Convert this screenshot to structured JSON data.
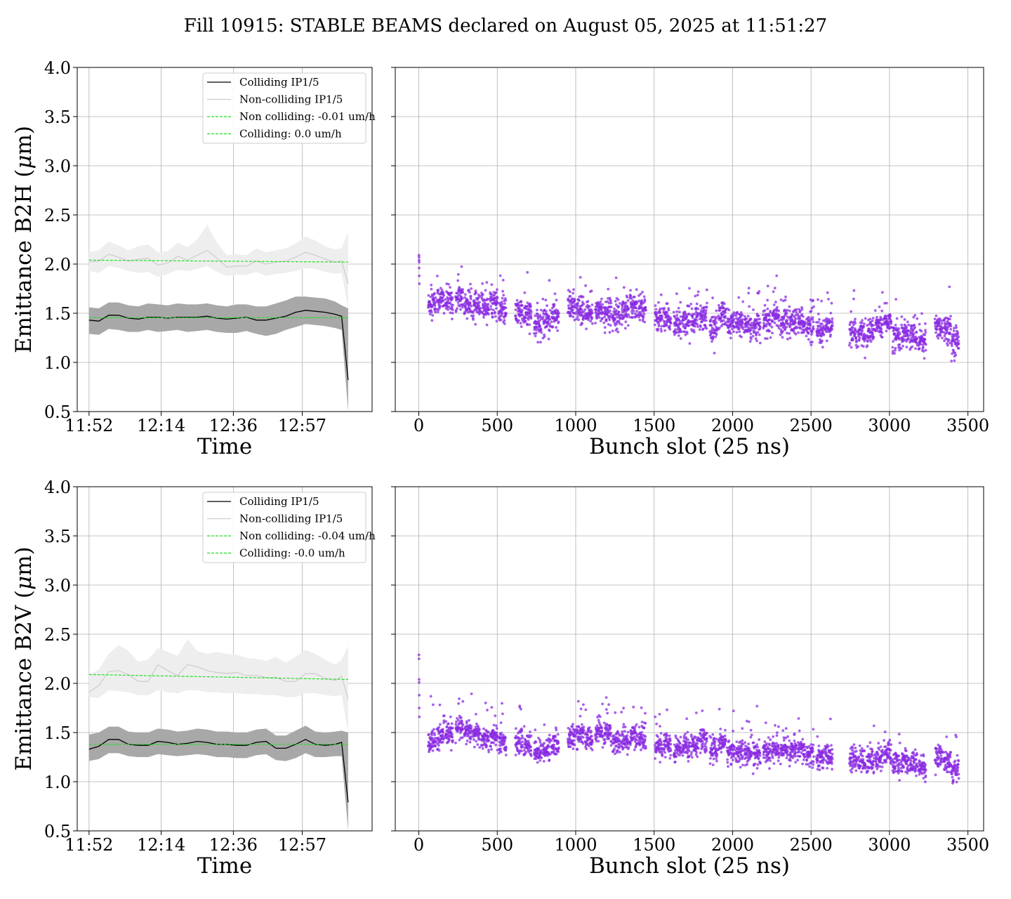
{
  "suptitle": "Fill 10915: STABLE BEAMS declared on August 05, 2025 at 11:51:27",
  "colors": {
    "colliding": "#000000",
    "colliding_band": "#a8a8a8",
    "noncolliding": "#cccccc",
    "noncolliding_band": "#eeeeee",
    "fit": "#22dd22",
    "scatter": "#8a2be2",
    "grid": "#b0b0b0"
  },
  "chart_data": [
    {
      "type": "line",
      "row": 0,
      "col": 0,
      "xlabel": "Time",
      "ylabel": "Emittance B2H ($\\mu$m)",
      "ylabel_text": "Emittance B2H (",
      "ylabel_mu": "μ",
      "ylabel_unit": "m)",
      "x_ticks": [
        "11:52",
        "12:14",
        "12:36",
        "12:57"
      ],
      "y_ticks": [
        "0.5",
        "1.0",
        "1.5",
        "2.0",
        "2.5",
        "3.0",
        "3.5",
        "4.0"
      ],
      "ylim": [
        0.5,
        4.0
      ],
      "grid": true,
      "legend_position": "upper-right",
      "legend": [
        "Colliding IP1/5",
        "Non-colliding IP1/5",
        "Non colliding: -0.01 um/h",
        "Colliding: 0.0 um/h"
      ],
      "time_minutes": [
        0,
        3,
        6,
        9,
        12,
        15,
        18,
        21,
        24,
        27,
        30,
        33,
        36,
        39,
        42,
        45,
        48,
        51,
        54,
        57,
        60,
        63,
        66,
        69,
        72,
        75,
        77,
        79
      ],
      "series": [
        {
          "name": "Colliding IP1/5",
          "kind": "line",
          "values": [
            1.43,
            1.42,
            1.48,
            1.48,
            1.45,
            1.44,
            1.46,
            1.46,
            1.45,
            1.46,
            1.46,
            1.46,
            1.47,
            1.45,
            1.44,
            1.45,
            1.46,
            1.43,
            1.43,
            1.45,
            1.47,
            1.51,
            1.53,
            1.52,
            1.51,
            1.49,
            1.47,
            0.82
          ],
          "band_lo": [
            1.29,
            1.28,
            1.34,
            1.33,
            1.31,
            1.31,
            1.33,
            1.31,
            1.32,
            1.33,
            1.31,
            1.32,
            1.33,
            1.31,
            1.3,
            1.3,
            1.32,
            1.29,
            1.27,
            1.29,
            1.33,
            1.36,
            1.39,
            1.38,
            1.37,
            1.35,
            1.33,
            0.5
          ],
          "band_hi": [
            1.56,
            1.55,
            1.61,
            1.61,
            1.58,
            1.57,
            1.6,
            1.59,
            1.58,
            1.6,
            1.59,
            1.59,
            1.6,
            1.58,
            1.57,
            1.59,
            1.59,
            1.57,
            1.57,
            1.6,
            1.63,
            1.67,
            1.67,
            1.66,
            1.65,
            1.62,
            1.58,
            1.55
          ]
        },
        {
          "name": "Non-colliding IP1/5",
          "kind": "line",
          "values": [
            2.02,
            2.03,
            2.1,
            2.07,
            2.03,
            2.05,
            2.06,
            1.99,
            2.01,
            2.08,
            2.04,
            2.09,
            2.14,
            2.06,
            1.97,
            1.98,
            1.98,
            2.03,
            2.0,
            2.02,
            2.03,
            2.07,
            2.12,
            2.09,
            2.05,
            2.02,
            2.03,
            1.8
          ],
          "band_lo": [
            1.93,
            1.91,
            1.98,
            1.96,
            1.93,
            1.91,
            1.92,
            1.87,
            1.9,
            1.94,
            1.93,
            1.95,
            1.98,
            1.92,
            1.88,
            1.89,
            1.89,
            1.92,
            1.88,
            1.9,
            1.91,
            1.93,
            1.96,
            1.95,
            1.92,
            1.9,
            1.91,
            1.55
          ],
          "band_hi": [
            2.12,
            2.14,
            2.23,
            2.19,
            2.14,
            2.18,
            2.2,
            2.12,
            2.13,
            2.22,
            2.17,
            2.25,
            2.4,
            2.22,
            2.09,
            2.1,
            2.09,
            2.16,
            2.12,
            2.14,
            2.16,
            2.21,
            2.28,
            2.24,
            2.18,
            2.15,
            2.16,
            2.33
          ]
        },
        {
          "name": "Non colliding: -0.01 um/h",
          "kind": "fit",
          "x": [
            0,
            79
          ],
          "values": [
            2.04,
            2.02
          ]
        },
        {
          "name": "Colliding: 0.0 um/h",
          "kind": "fit",
          "x": [
            0,
            79
          ],
          "values": [
            1.455,
            1.455
          ]
        }
      ]
    },
    {
      "type": "scatter",
      "row": 0,
      "col": 1,
      "xlabel": "Bunch slot (25 ns)",
      "x_ticks": [
        "0",
        "500",
        "1000",
        "1500",
        "2000",
        "2500",
        "3000",
        "3500"
      ],
      "xlim": [
        -150,
        3600
      ],
      "ylim": [
        0.5,
        4.0
      ],
      "grid": true,
      "first_bunch": [
        2.09,
        2.07,
        2.04,
        2.02,
        1.96,
        1.88,
        1.8
      ],
      "trains": [
        {
          "start": 60,
          "mean": 1.58
        },
        {
          "start": 115,
          "mean": 1.62
        },
        {
          "start": 170,
          "mean": 1.6
        },
        {
          "start": 235,
          "mean": 1.63
        },
        {
          "start": 290,
          "mean": 1.57
        },
        {
          "start": 345,
          "mean": 1.54
        },
        {
          "start": 400,
          "mean": 1.56
        },
        {
          "start": 455,
          "mean": 1.59
        },
        {
          "start": 510,
          "mean": 1.5
        },
        {
          "start": 615,
          "mean": 1.49
        },
        {
          "start": 670,
          "mean": 1.47
        },
        {
          "start": 735,
          "mean": 1.36
        },
        {
          "start": 790,
          "mean": 1.42
        },
        {
          "start": 845,
          "mean": 1.45
        },
        {
          "start": 950,
          "mean": 1.54
        },
        {
          "start": 1005,
          "mean": 1.5
        },
        {
          "start": 1060,
          "mean": 1.46
        },
        {
          "start": 1125,
          "mean": 1.52
        },
        {
          "start": 1180,
          "mean": 1.49
        },
        {
          "start": 1235,
          "mean": 1.47
        },
        {
          "start": 1290,
          "mean": 1.51
        },
        {
          "start": 1345,
          "mean": 1.56
        },
        {
          "start": 1400,
          "mean": 1.55
        },
        {
          "start": 1505,
          "mean": 1.43
        },
        {
          "start": 1560,
          "mean": 1.41
        },
        {
          "start": 1625,
          "mean": 1.37
        },
        {
          "start": 1680,
          "mean": 1.4
        },
        {
          "start": 1735,
          "mean": 1.42
        },
        {
          "start": 1790,
          "mean": 1.45
        },
        {
          "start": 1855,
          "mean": 1.33
        },
        {
          "start": 1910,
          "mean": 1.46
        },
        {
          "start": 1965,
          "mean": 1.37
        },
        {
          "start": 2020,
          "mean": 1.38
        },
        {
          "start": 2075,
          "mean": 1.36
        },
        {
          "start": 2130,
          "mean": 1.36
        },
        {
          "start": 2195,
          "mean": 1.4
        },
        {
          "start": 2250,
          "mean": 1.45
        },
        {
          "start": 2305,
          "mean": 1.39
        },
        {
          "start": 2360,
          "mean": 1.38
        },
        {
          "start": 2415,
          "mean": 1.4
        },
        {
          "start": 2470,
          "mean": 1.33
        },
        {
          "start": 2535,
          "mean": 1.27
        },
        {
          "start": 2590,
          "mean": 1.34
        },
        {
          "start": 2745,
          "mean": 1.28
        },
        {
          "start": 2800,
          "mean": 1.27
        },
        {
          "start": 2855,
          "mean": 1.3
        },
        {
          "start": 2910,
          "mean": 1.36
        },
        {
          "start": 2965,
          "mean": 1.4
        },
        {
          "start": 3020,
          "mean": 1.25
        },
        {
          "start": 3075,
          "mean": 1.26
        },
        {
          "start": 3130,
          "mean": 1.25
        },
        {
          "start": 3185,
          "mean": 1.21
        },
        {
          "start": 3290,
          "mean": 1.35
        },
        {
          "start": 3345,
          "mean": 1.33
        },
        {
          "start": 3395,
          "mean": 1.2
        }
      ],
      "train_length": 48,
      "spread": 0.07
    },
    {
      "type": "line",
      "row": 1,
      "col": 0,
      "xlabel": "Time",
      "ylabel": "Emittance B2V ($\\mu$m)",
      "ylabel_text": "Emittance B2V (",
      "ylabel_mu": "μ",
      "ylabel_unit": "m)",
      "x_ticks": [
        "11:52",
        "12:14",
        "12:36",
        "12:57"
      ],
      "y_ticks": [
        "0.5",
        "1.0",
        "1.5",
        "2.0",
        "2.5",
        "3.0",
        "3.5",
        "4.0"
      ],
      "ylim": [
        0.5,
        4.0
      ],
      "grid": true,
      "legend_position": "upper-right",
      "legend": [
        "Colliding IP1/5",
        "Non-colliding IP1/5",
        "Non colliding: -0.04 um/h",
        "Colliding: -0.0 um/h"
      ],
      "time_minutes": [
        0,
        3,
        6,
        9,
        12,
        15,
        18,
        21,
        24,
        27,
        30,
        33,
        36,
        39,
        42,
        45,
        48,
        51,
        54,
        57,
        60,
        63,
        66,
        69,
        72,
        75,
        77,
        79
      ],
      "series": [
        {
          "name": "Colliding IP1/5",
          "kind": "line",
          "values": [
            1.33,
            1.36,
            1.43,
            1.43,
            1.38,
            1.37,
            1.37,
            1.41,
            1.4,
            1.38,
            1.39,
            1.41,
            1.4,
            1.38,
            1.38,
            1.37,
            1.37,
            1.4,
            1.41,
            1.34,
            1.34,
            1.38,
            1.43,
            1.38,
            1.37,
            1.38,
            1.4,
            0.79
          ],
          "band_lo": [
            1.21,
            1.23,
            1.29,
            1.29,
            1.26,
            1.25,
            1.25,
            1.28,
            1.27,
            1.26,
            1.27,
            1.28,
            1.27,
            1.25,
            1.25,
            1.24,
            1.24,
            1.27,
            1.28,
            1.22,
            1.21,
            1.24,
            1.29,
            1.25,
            1.25,
            1.26,
            1.26,
            0.5
          ],
          "band_hi": [
            1.48,
            1.5,
            1.56,
            1.56,
            1.51,
            1.5,
            1.5,
            1.54,
            1.53,
            1.51,
            1.52,
            1.54,
            1.53,
            1.51,
            1.51,
            1.5,
            1.5,
            1.53,
            1.54,
            1.47,
            1.47,
            1.52,
            1.57,
            1.51,
            1.5,
            1.51,
            1.52,
            1.5
          ]
        },
        {
          "name": "Non-colliding IP1/5",
          "kind": "line",
          "values": [
            1.91,
            1.98,
            2.12,
            2.13,
            2.09,
            2.02,
            2.02,
            2.19,
            2.13,
            2.08,
            2.19,
            2.17,
            2.13,
            2.11,
            2.1,
            2.11,
            2.08,
            2.08,
            2.06,
            2.06,
            2.02,
            2.02,
            2.1,
            2.1,
            2.05,
            2.03,
            2.07,
            1.84
          ],
          "band_lo": [
            1.86,
            1.85,
            1.93,
            1.92,
            1.91,
            1.88,
            1.88,
            1.93,
            1.91,
            1.9,
            1.93,
            1.93,
            1.91,
            1.91,
            1.9,
            1.9,
            1.89,
            1.89,
            1.88,
            1.88,
            1.86,
            1.86,
            1.9,
            1.9,
            1.88,
            1.87,
            1.88,
            1.5
          ],
          "band_hi": [
            2.09,
            2.14,
            2.3,
            2.39,
            2.33,
            2.22,
            2.24,
            2.36,
            2.32,
            2.28,
            2.45,
            2.33,
            2.3,
            2.32,
            2.3,
            2.29,
            2.26,
            2.25,
            2.23,
            2.27,
            2.21,
            2.27,
            2.34,
            2.3,
            2.24,
            2.19,
            2.24,
            2.38
          ]
        },
        {
          "name": "Non colliding: -0.04 um/h",
          "kind": "fit",
          "x": [
            0,
            79
          ],
          "values": [
            2.09,
            2.04
          ]
        },
        {
          "name": "Colliding: -0.0 um/h",
          "kind": "fit",
          "x": [
            0,
            79
          ],
          "values": [
            1.38,
            1.38
          ]
        }
      ]
    },
    {
      "type": "scatter",
      "row": 1,
      "col": 1,
      "xlabel": "Bunch slot (25 ns)",
      "x_ticks": [
        "0",
        "500",
        "1000",
        "1500",
        "2000",
        "2500",
        "3000",
        "3500"
      ],
      "xlim": [
        -150,
        3600
      ],
      "ylim": [
        0.5,
        4.0
      ],
      "grid": true,
      "first_bunch": [
        2.29,
        2.25,
        2.04,
        2.01,
        1.88,
        1.75,
        1.66
      ],
      "trains": [
        {
          "start": 60,
          "mean": 1.4
        },
        {
          "start": 115,
          "mean": 1.44
        },
        {
          "start": 170,
          "mean": 1.46
        },
        {
          "start": 235,
          "mean": 1.52
        },
        {
          "start": 290,
          "mean": 1.49
        },
        {
          "start": 345,
          "mean": 1.46
        },
        {
          "start": 400,
          "mean": 1.42
        },
        {
          "start": 455,
          "mean": 1.43
        },
        {
          "start": 510,
          "mean": 1.38
        },
        {
          "start": 615,
          "mean": 1.39
        },
        {
          "start": 670,
          "mean": 1.36
        },
        {
          "start": 735,
          "mean": 1.28
        },
        {
          "start": 790,
          "mean": 1.31
        },
        {
          "start": 845,
          "mean": 1.36
        },
        {
          "start": 950,
          "mean": 1.43
        },
        {
          "start": 1005,
          "mean": 1.46
        },
        {
          "start": 1060,
          "mean": 1.41
        },
        {
          "start": 1125,
          "mean": 1.49
        },
        {
          "start": 1180,
          "mean": 1.47
        },
        {
          "start": 1235,
          "mean": 1.39
        },
        {
          "start": 1290,
          "mean": 1.39
        },
        {
          "start": 1345,
          "mean": 1.45
        },
        {
          "start": 1400,
          "mean": 1.42
        },
        {
          "start": 1505,
          "mean": 1.34
        },
        {
          "start": 1560,
          "mean": 1.35
        },
        {
          "start": 1625,
          "mean": 1.31
        },
        {
          "start": 1680,
          "mean": 1.34
        },
        {
          "start": 1735,
          "mean": 1.36
        },
        {
          "start": 1790,
          "mean": 1.38
        },
        {
          "start": 1855,
          "mean": 1.31
        },
        {
          "start": 1910,
          "mean": 1.38
        },
        {
          "start": 1965,
          "mean": 1.29
        },
        {
          "start": 2020,
          "mean": 1.29
        },
        {
          "start": 2075,
          "mean": 1.27
        },
        {
          "start": 2130,
          "mean": 1.26
        },
        {
          "start": 2195,
          "mean": 1.28
        },
        {
          "start": 2250,
          "mean": 1.31
        },
        {
          "start": 2305,
          "mean": 1.3
        },
        {
          "start": 2360,
          "mean": 1.3
        },
        {
          "start": 2415,
          "mean": 1.29
        },
        {
          "start": 2470,
          "mean": 1.25
        },
        {
          "start": 2535,
          "mean": 1.22
        },
        {
          "start": 2590,
          "mean": 1.25
        },
        {
          "start": 2745,
          "mean": 1.2
        },
        {
          "start": 2800,
          "mean": 1.19
        },
        {
          "start": 2855,
          "mean": 1.2
        },
        {
          "start": 2910,
          "mean": 1.22
        },
        {
          "start": 2965,
          "mean": 1.27
        },
        {
          "start": 3020,
          "mean": 1.16
        },
        {
          "start": 3075,
          "mean": 1.2
        },
        {
          "start": 3130,
          "mean": 1.16
        },
        {
          "start": 3185,
          "mean": 1.12
        },
        {
          "start": 3290,
          "mean": 1.22
        },
        {
          "start": 3345,
          "mean": 1.21
        },
        {
          "start": 3395,
          "mean": 1.1
        }
      ],
      "train_length": 48,
      "spread": 0.06
    }
  ]
}
